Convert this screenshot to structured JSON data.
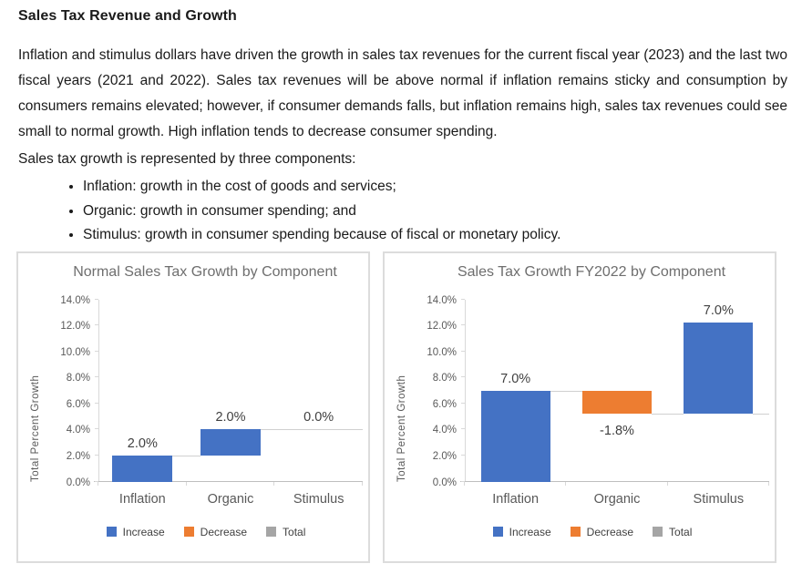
{
  "document": {
    "heading": "Sales Tax Revenue and Growth",
    "paragraph": "Inflation and stimulus dollars have driven the growth in sales tax revenues for the current fiscal year (2023) and the last two fiscal years (2021 and 2022). Sales tax revenues will be above normal if inflation remains sticky and consumption by consumers remains elevated; however, if consumer demands falls, but inflation remains high, sales tax revenues could see small to normal growth. High inflation tends to decrease consumer spending.",
    "list_intro": "Sales tax growth is represented by three components:",
    "bullets": [
      "Inflation: growth in the cost of goods and services;",
      "Organic: growth in consumer spending; and",
      "Stimulus: growth in consumer spending because of fiscal or monetary policy."
    ]
  },
  "colors": {
    "increase": "#4472C4",
    "decrease": "#ED7D31",
    "total": "#A5A5A5",
    "axis_line": "#D9D9D9",
    "baseline": "#BFBFBF",
    "connector": "#D0D0D0",
    "chart_text": "#595959",
    "title_text": "#6E6E6E",
    "label_text": "#404040",
    "panel_border": "#DCDCDC"
  },
  "chart_data": [
    {
      "type": "bar",
      "subtype": "waterfall",
      "title": "Normal Sales Tax Growth by Component",
      "ylabel": "Total Percent Growth",
      "xlabel": "",
      "ylim": [
        0,
        14
      ],
      "y_ticks": [
        "0.0%",
        "2.0%",
        "4.0%",
        "6.0%",
        "8.0%",
        "10.0%",
        "12.0%",
        "14.0%"
      ],
      "grid": false,
      "legend_position": "bottom",
      "categories": [
        "Inflation",
        "Organic",
        "Stimulus"
      ],
      "values": [
        2.0,
        2.0,
        0.0
      ],
      "labels": [
        "2.0%",
        "2.0%",
        "0.0%"
      ],
      "cumulative": [
        2.0,
        4.0,
        4.0
      ],
      "legend": [
        {
          "label": "Increase",
          "color": "#4472C4"
        },
        {
          "label": "Decrease",
          "color": "#ED7D31"
        },
        {
          "label": "Total",
          "color": "#A5A5A5"
        }
      ]
    },
    {
      "type": "bar",
      "subtype": "waterfall",
      "title": "Sales Tax Growth FY2022 by Component",
      "ylabel": "Total Percent Growth",
      "xlabel": "",
      "ylim": [
        0,
        14
      ],
      "y_ticks": [
        "0.0%",
        "2.0%",
        "4.0%",
        "6.0%",
        "8.0%",
        "10.0%",
        "12.0%",
        "14.0%"
      ],
      "grid": false,
      "legend_position": "bottom",
      "categories": [
        "Inflation",
        "Organic",
        "Stimulus"
      ],
      "values": [
        7.0,
        -1.8,
        7.0
      ],
      "labels": [
        "7.0%",
        "-1.8%",
        "7.0%"
      ],
      "cumulative": [
        7.0,
        5.2,
        12.2
      ],
      "legend": [
        {
          "label": "Increase",
          "color": "#4472C4"
        },
        {
          "label": "Decrease",
          "color": "#ED7D31"
        },
        {
          "label": "Total",
          "color": "#A5A5A5"
        }
      ]
    }
  ]
}
